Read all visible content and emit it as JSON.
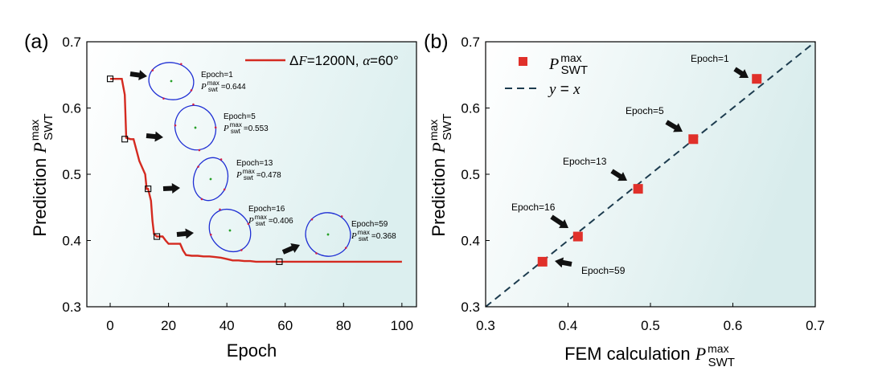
{
  "colors": {
    "line": "#d42a20",
    "marker": "#e0302a",
    "diag": "#1d3c4f",
    "contour": "#1f2fd4",
    "node": "#d0204a",
    "center": "#27a027",
    "bg_a_start": "#ffffff",
    "bg_a_end": "#dcefef",
    "bg_b_start": "#ffffff",
    "bg_b_end": "#d8ecec",
    "arrow": "#111111"
  },
  "chart_data": [
    {
      "type": "line",
      "panel_label": "(a)",
      "xlabel": "Epoch",
      "ylabel_main": "Prediction ",
      "ylabel_sym": "P",
      "ylabel_sup": "max",
      "ylabel_sub": "SWT",
      "xlim": [
        -8,
        105
      ],
      "ylim": [
        0.3,
        0.7
      ],
      "xticks": [
        "0",
        "20",
        "40",
        "60",
        "80",
        "100"
      ],
      "xtick_values": [
        0,
        20,
        40,
        60,
        80,
        100
      ],
      "yticks": [
        "0.3",
        "0.4",
        "0.5",
        "0.6",
        "0.7"
      ],
      "ytick_values": [
        0.3,
        0.4,
        0.5,
        0.6,
        0.7
      ],
      "legend": {
        "text_pre": "Δ",
        "text_F": "F",
        "text_mid": "=1200N, ",
        "text_alpha": "α",
        "text_end": "=60°",
        "position": "top-right"
      },
      "series": [
        {
          "x": [
            0,
            4,
            5,
            5.5,
            7,
            8,
            10,
            12,
            12.5,
            13,
            14,
            14.5,
            15,
            16,
            17,
            18,
            19,
            20,
            22,
            24,
            25,
            26,
            28,
            30,
            32,
            34,
            36,
            38,
            40,
            42,
            44,
            46,
            48,
            50,
            55,
            60,
            70,
            80,
            90,
            100
          ],
          "y": [
            0.644,
            0.644,
            0.62,
            0.555,
            0.553,
            0.553,
            0.52,
            0.5,
            0.478,
            0.478,
            0.46,
            0.43,
            0.41,
            0.406,
            0.406,
            0.406,
            0.4,
            0.395,
            0.395,
            0.395,
            0.385,
            0.378,
            0.377,
            0.377,
            0.376,
            0.376,
            0.375,
            0.374,
            0.372,
            0.37,
            0.37,
            0.369,
            0.369,
            0.368,
            0.368,
            0.368,
            0.368,
            0.368,
            0.368,
            0.368
          ]
        }
      ],
      "markers": [
        {
          "x": 0,
          "y": 0.644
        },
        {
          "x": 5,
          "y": 0.553
        },
        {
          "x": 13,
          "y": 0.478
        },
        {
          "x": 16,
          "y": 0.406
        },
        {
          "x": 58,
          "y": 0.368
        }
      ],
      "annotations": [
        {
          "epoch": "Epoch=1",
          "value": "=0.644",
          "sym_sup": "max",
          "sym_sub": "swt"
        },
        {
          "epoch": "Epoch=5",
          "value": "=0.553",
          "sym_sup": "max",
          "sym_sub": "swt"
        },
        {
          "epoch": "Epoch=13",
          "value": "=0.478",
          "sym_sup": "max",
          "sym_sub": "swt"
        },
        {
          "epoch": "Epoch=16",
          "value": "=0.406",
          "sym_sup": "max",
          "sym_sub": "swt"
        },
        {
          "epoch": "Epoch=59",
          "value": "=0.368",
          "sym_sup": "max",
          "sym_sub": "swt"
        }
      ],
      "grid": false
    },
    {
      "type": "scatter",
      "panel_label": "(b)",
      "xlabel_main": "FEM calculation ",
      "xlabel_sym": "P",
      "xlabel_sup": "max",
      "xlabel_sub": "SWT",
      "ylabel_main": "Prediction ",
      "ylabel_sym": "P",
      "ylabel_sup": "max",
      "ylabel_sub": "SWT",
      "xlim": [
        0.3,
        0.7
      ],
      "ylim": [
        0.3,
        0.7
      ],
      "xticks": [
        "0.3",
        "0.4",
        "0.5",
        "0.6",
        "0.7"
      ],
      "xtick_values": [
        0.3,
        0.4,
        0.5,
        0.6,
        0.7
      ],
      "yticks": [
        "0.3",
        "0.4",
        "0.5",
        "0.6",
        "0.7"
      ],
      "ytick_values": [
        0.3,
        0.4,
        0.5,
        0.6,
        0.7
      ],
      "legend": {
        "points_sym": "P",
        "points_sup": "max",
        "points_sub": "SWT",
        "line_pre": "y",
        "line_mid": " = ",
        "line_post": "x",
        "position": "top-left"
      },
      "points": [
        {
          "label": "Epoch=1",
          "x": 0.629,
          "y": 0.644
        },
        {
          "label": "Epoch=5",
          "x": 0.552,
          "y": 0.553
        },
        {
          "label": "Epoch=13",
          "x": 0.485,
          "y": 0.478
        },
        {
          "label": "Epoch=16",
          "x": 0.412,
          "y": 0.406
        },
        {
          "label": "Epoch=59",
          "x": 0.369,
          "y": 0.368
        }
      ],
      "reference_line": {
        "from": [
          0.3,
          0.3
        ],
        "to": [
          0.7,
          0.7
        ]
      },
      "grid": false
    }
  ]
}
